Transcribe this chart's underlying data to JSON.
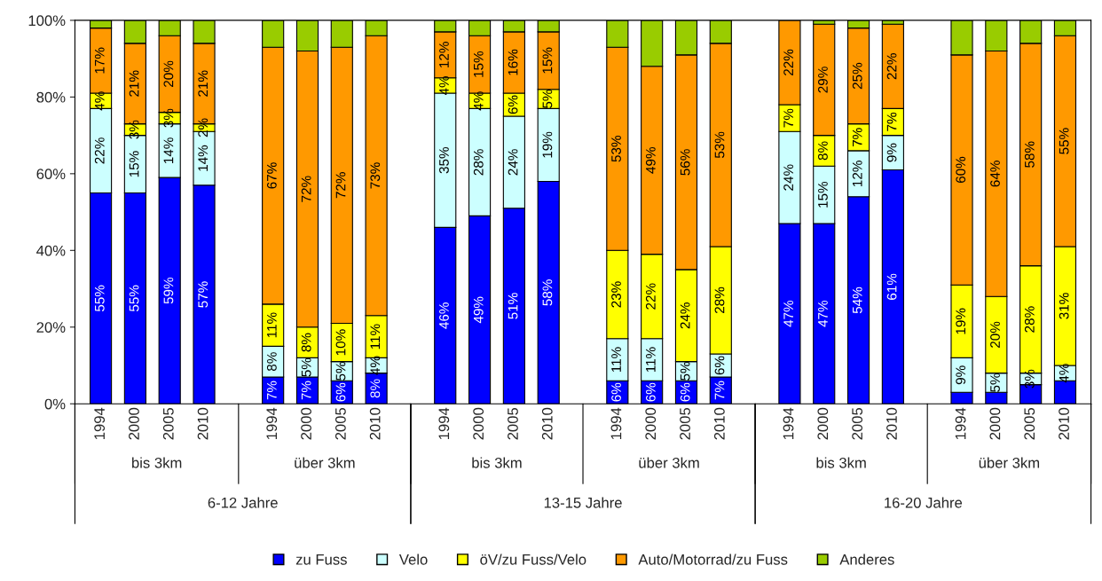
{
  "chart_data": {
    "type": "bar",
    "stacked": true,
    "categories": [
      "1994",
      "2000",
      "2005",
      "2010",
      null,
      "1994",
      "2000",
      "2005",
      "2010",
      null,
      "1994",
      "2000",
      "2005",
      "2010",
      null,
      "1994",
      "2000",
      "2005",
      "2010",
      null,
      "1994",
      "2000",
      "2005",
      "2010",
      null,
      "1994",
      "2000",
      "2005",
      "2010"
    ],
    "annotations": [
      "bis 3km",
      "über 3km",
      "bis 3km",
      "über 3km",
      "bis 3km",
      "über 3km",
      "6-12 Jahre",
      "13-15 Jahre",
      "16-20 Jahre"
    ],
    "ylim": [
      0,
      100
    ],
    "yticks": [
      {
        "value": 0,
        "label": "0%"
      },
      {
        "value": 20,
        "label": "20%"
      },
      {
        "value": 40,
        "label": "40%"
      },
      {
        "value": 60,
        "label": "60%"
      },
      {
        "value": 80,
        "label": "80%"
      },
      {
        "value": 100,
        "label": "100%"
      }
    ],
    "grid": false,
    "legend": "bottom",
    "series": [
      {
        "name": "zu Fuss",
        "color": "#0000ff",
        "values": [
          55,
          55,
          59,
          57,
          null,
          7,
          7,
          6,
          8,
          null,
          46,
          49,
          51,
          58,
          null,
          6,
          6,
          6,
          7,
          null,
          47,
          47,
          54,
          61,
          null,
          3,
          3,
          5,
          6
        ],
        "value_labels": [
          "55%",
          "55%",
          "59%",
          "57%",
          null,
          "7%",
          "7%",
          "6%",
          "8%",
          null,
          "46%",
          "49%",
          "51%",
          "58%",
          null,
          "6%",
          "6%",
          "6%",
          "7%",
          null,
          "47%",
          "47%",
          "54%",
          "61%",
          null,
          null,
          null,
          null,
          null
        ]
      },
      {
        "name": "Velo",
        "color": "#ccffff",
        "values": [
          22,
          15,
          14,
          14,
          null,
          8,
          5,
          5,
          4,
          null,
          35,
          28,
          24,
          19,
          null,
          11,
          11,
          5,
          6,
          null,
          24,
          15,
          12,
          9,
          null,
          9,
          5,
          3,
          4
        ],
        "value_labels": [
          "22%",
          "15%",
          "14%",
          "14%",
          null,
          "8%",
          "5%",
          "5%",
          "4%",
          null,
          "35%",
          "28%",
          "24%",
          "19%",
          null,
          "11%",
          "11%",
          "5%",
          "6%",
          null,
          "24%",
          "15%",
          "12%",
          "9%",
          null,
          "9%",
          "5%",
          "3%",
          "4%"
        ]
      },
      {
        "name": "öV/zu Fuss/Velo",
        "color": "#ffff00",
        "values": [
          4,
          3,
          3,
          2,
          null,
          11,
          8,
          10,
          11,
          null,
          4,
          4,
          6,
          5,
          null,
          23,
          22,
          24,
          28,
          null,
          7,
          8,
          7,
          7,
          null,
          19,
          20,
          28,
          31
        ],
        "value_labels": [
          "4%",
          "3%",
          "3%",
          "2%",
          null,
          "11%",
          "8%",
          "10%",
          "11%",
          null,
          "4%",
          "4%",
          "6%",
          "5%",
          null,
          "23%",
          "22%",
          "24%",
          "28%",
          null,
          "7%",
          "8%",
          "7%",
          "7%",
          null,
          "19%",
          "20%",
          "28%",
          "31%"
        ]
      },
      {
        "name": "Auto/Motorrad/zu Fuss",
        "color": "#ff9900",
        "values": [
          17,
          21,
          20,
          21,
          null,
          67,
          72,
          72,
          73,
          null,
          12,
          15,
          16,
          15,
          null,
          53,
          49,
          56,
          53,
          null,
          22,
          29,
          25,
          22,
          null,
          60,
          64,
          58,
          55
        ],
        "value_labels": [
          "17%",
          "21%",
          "20%",
          "21%",
          null,
          "67%",
          "72%",
          "72%",
          "73%",
          null,
          "12%",
          "15%",
          "16%",
          "15%",
          null,
          "53%",
          "49%",
          "56%",
          "53%",
          null,
          "22%",
          "29%",
          "25%",
          "22%",
          null,
          "60%",
          "64%",
          "58%",
          "55%"
        ]
      },
      {
        "name": "Anderes",
        "color": "#99cc00",
        "values": [
          2,
          6,
          4,
          6,
          null,
          7,
          8,
          7,
          4,
          null,
          3,
          4,
          3,
          3,
          null,
          7,
          12,
          9,
          6,
          null,
          null,
          1,
          2,
          1,
          null,
          9,
          8,
          6,
          4
        ]
      }
    ]
  }
}
